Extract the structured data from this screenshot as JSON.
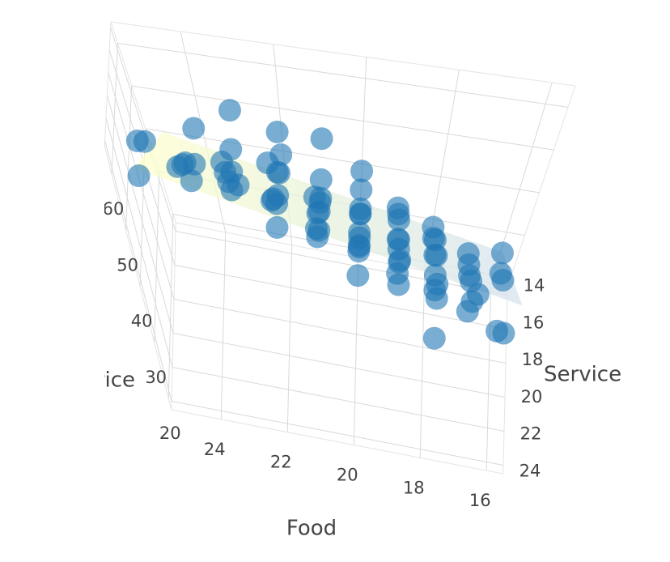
{
  "chart_data": {
    "type": "scatter3d",
    "x_label": "Food",
    "y_label": "Service",
    "z_label": "Price",
    "x": [
      19,
      20,
      21,
      22,
      23,
      18,
      19,
      20,
      21,
      22,
      23,
      24,
      18,
      19,
      20,
      21,
      22,
      23,
      17,
      18,
      19,
      20,
      21,
      22,
      23,
      17,
      18,
      19,
      20,
      21,
      22,
      16,
      17,
      18,
      19,
      20,
      21,
      16,
      17,
      18,
      19,
      20,
      16,
      18,
      19,
      20,
      21,
      22,
      23,
      24,
      19,
      21,
      22,
      23,
      20,
      24,
      22,
      25,
      18,
      17,
      19,
      24,
      25,
      16,
      17,
      18,
      20,
      21,
      22,
      23,
      24,
      25,
      21,
      16,
      18,
      20,
      24,
      22,
      17,
      23
    ],
    "y": [
      21,
      21,
      21,
      21,
      21,
      21,
      20,
      20,
      20,
      20,
      20,
      20,
      19,
      19,
      19,
      19,
      19,
      19,
      18,
      18,
      18,
      18,
      18,
      18,
      18,
      17,
      17,
      17,
      17,
      17,
      17,
      16,
      16,
      16,
      16,
      16,
      16,
      15,
      15,
      15,
      15,
      15,
      14,
      14,
      14,
      22,
      22,
      22,
      22,
      22,
      22,
      23,
      23,
      23,
      23,
      24,
      24,
      23,
      20,
      19,
      23,
      21,
      21,
      18,
      20,
      22,
      24,
      14,
      16,
      17,
      18,
      19,
      24,
      20,
      24,
      14,
      16,
      15,
      22,
      24
    ],
    "z": [
      43,
      45,
      50,
      46,
      52,
      40,
      38,
      42,
      44,
      48,
      53,
      50,
      36,
      40,
      41,
      45,
      47,
      55,
      33,
      37,
      39,
      43,
      44,
      49,
      45,
      31,
      34,
      36,
      40,
      42,
      46,
      28,
      30,
      34,
      37,
      38,
      43,
      26,
      29,
      31,
      35,
      39,
      27,
      30,
      33,
      50,
      48,
      54,
      56,
      58,
      46,
      52,
      56,
      60,
      49,
      62,
      65,
      57,
      36,
      30,
      44,
      56,
      59,
      24,
      35,
      40,
      47,
      46,
      52,
      58,
      48,
      54,
      60,
      30,
      38,
      40,
      50,
      44,
      42,
      64
    ],
    "color": "#1f77b4",
    "xlim": [
      15.5,
      25.5
    ],
    "ylim": [
      13.5,
      24.5
    ],
    "zlim": [
      18,
      65
    ],
    "xticks": [
      16,
      18,
      20,
      22,
      24
    ],
    "yticks": [
      14,
      16,
      18,
      20,
      22,
      24
    ],
    "zticks": [
      20,
      30,
      40,
      50,
      60
    ],
    "surface": {
      "x": [
        16,
        25
      ],
      "y": [
        14,
        24
      ],
      "z": [
        [
          27.2,
          41.6
        ],
        [
          46.2,
          60.6
        ]
      ]
    }
  }
}
